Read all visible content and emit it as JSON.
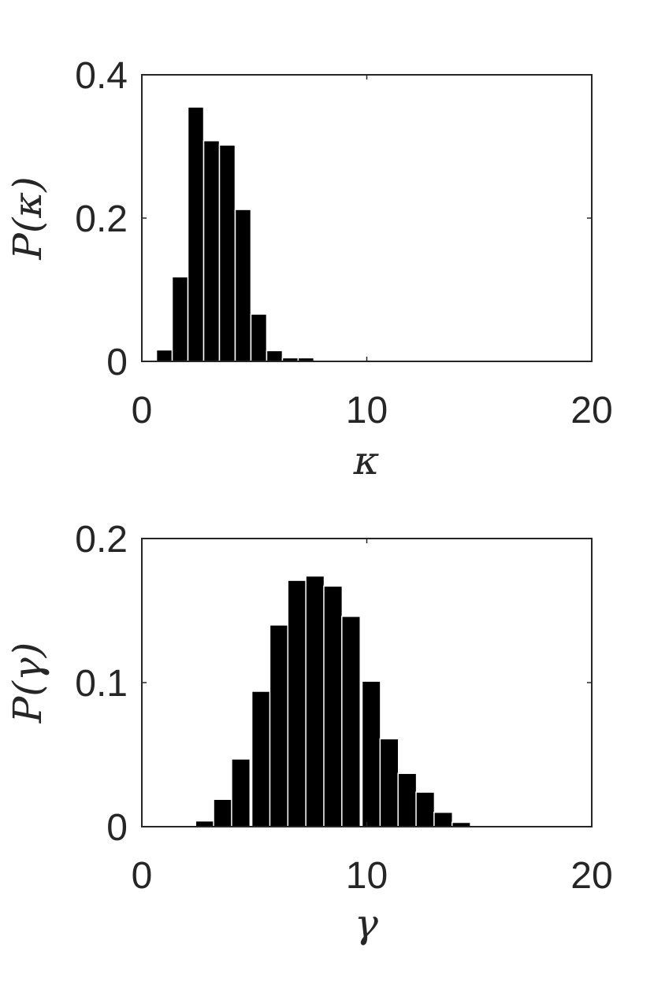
{
  "chart_data": [
    {
      "type": "bar",
      "xlabel": "κ",
      "ylabel": "P(κ)",
      "xlim": [
        0,
        20
      ],
      "ylim": [
        0,
        0.4
      ],
      "xticks": [
        "0",
        "10",
        "20"
      ],
      "yticks": [
        "0",
        "0.2",
        "0.4"
      ],
      "bin_width": 0.7,
      "x": [
        1,
        1.7,
        2.4,
        3.1,
        3.8,
        4.5,
        5.2,
        5.9,
        6.6,
        7.3
      ],
      "values": [
        0.016,
        0.118,
        0.355,
        0.308,
        0.302,
        0.212,
        0.066,
        0.015,
        0.005,
        0.005
      ],
      "grid": false
    },
    {
      "type": "bar",
      "xlabel": "γ",
      "ylabel": "P(γ)",
      "xlim": [
        0,
        20
      ],
      "ylim": [
        0,
        0.2
      ],
      "xticks": [
        "0",
        "10",
        "20"
      ],
      "yticks": [
        "0",
        "0.1",
        "0.2"
      ],
      "bin_width": 0.82,
      "x": [
        2.8,
        3.6,
        4.4,
        5.3,
        6.1,
        6.9,
        7.7,
        8.5,
        9.3,
        10.2,
        11.0,
        11.8,
        12.6,
        13.4,
        14.2,
        15.1,
        15.9
      ],
      "values": [
        0.004,
        0.019,
        0.047,
        0.094,
        0.14,
        0.171,
        0.174,
        0.167,
        0.146,
        0.101,
        0.061,
        0.037,
        0.024,
        0.01,
        0.003,
        0.0006,
        0.0003
      ],
      "grid": false
    }
  ]
}
